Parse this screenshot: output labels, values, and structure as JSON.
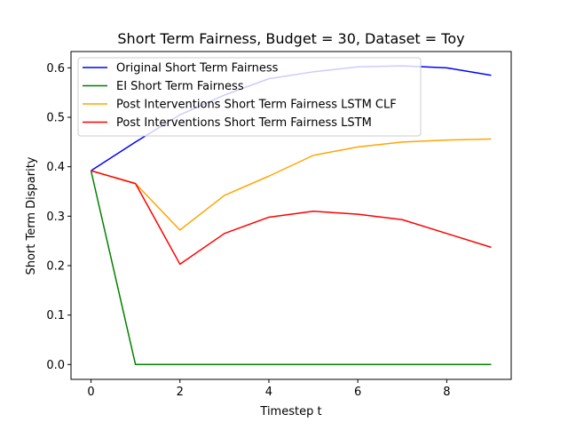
{
  "chart_data": {
    "type": "line",
    "title": "Short Term Fairness, Budget = 30, Dataset = Toy",
    "xlabel": "Timestep t",
    "ylabel": "Short Term Disparity",
    "xlim": [
      -0.45,
      9.45
    ],
    "ylim": [
      -0.03,
      0.633
    ],
    "xticks": [
      0,
      2,
      4,
      6,
      8
    ],
    "xtick_labels": [
      "0",
      "2",
      "4",
      "6",
      "8"
    ],
    "yticks": [
      0.0,
      0.1,
      0.2,
      0.3,
      0.4,
      0.5,
      0.6
    ],
    "ytick_labels": [
      "0.0",
      "0.1",
      "0.2",
      "0.3",
      "0.4",
      "0.5",
      "0.6"
    ],
    "grid": false,
    "legend_position": "top-left",
    "x": [
      0,
      1,
      2,
      3,
      4,
      5,
      6,
      7,
      8,
      9
    ],
    "series": [
      {
        "name": "Original Short Term Fairness",
        "color": "#0000ff",
        "values": [
          0.392,
          0.45,
          0.505,
          0.545,
          0.578,
          0.592,
          0.602,
          0.604,
          0.6,
          0.585
        ]
      },
      {
        "name": "EI Short Term Fairness",
        "color": "#008000",
        "values": [
          0.392,
          0.0,
          0.0,
          0.0,
          0.0,
          0.0,
          0.0,
          0.0,
          0.0,
          0.0
        ]
      },
      {
        "name": "Post Interventions Short Term Fairness LSTM CLF",
        "color": "#ffa500",
        "values": [
          0.392,
          0.366,
          0.272,
          0.342,
          0.381,
          0.423,
          0.44,
          0.45,
          0.454,
          0.456
        ]
      },
      {
        "name": "Post Interventions Short Term Fairness LSTM",
        "color": "#ff0000",
        "values": [
          0.392,
          0.366,
          0.203,
          0.265,
          0.298,
          0.31,
          0.304,
          0.293,
          0.265,
          0.237
        ]
      }
    ]
  }
}
